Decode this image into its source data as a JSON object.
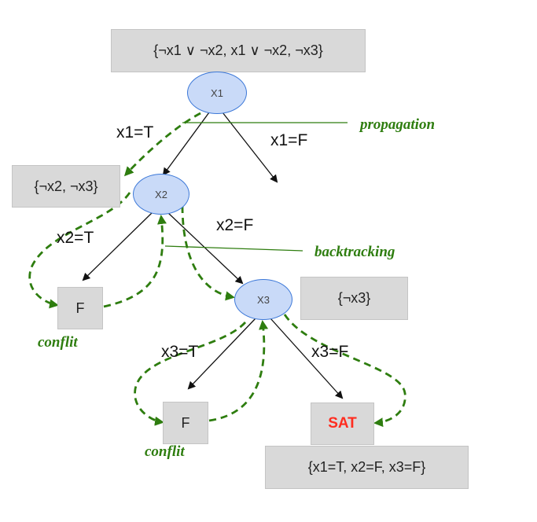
{
  "root_clauses": "{¬x1 ∨ ¬x2, x1 ∨ ¬x2, ¬x3}",
  "nodes": {
    "x1": "X1",
    "x2": "X2",
    "x3": "X3"
  },
  "edges": {
    "x1_true": "x1=T",
    "x1_false": "x1=F",
    "x2_true": "x2=T",
    "x2_false": "x2=F",
    "x3_true": "x3=T",
    "x3_false": "x3=F"
  },
  "clauses_after_x1": "{¬x2, ¬x3}",
  "clauses_after_x2": "{¬x3}",
  "leaf_false_1": "F",
  "leaf_false_2": "F",
  "leaf_sat": "SAT",
  "solution": "{x1=T, x2=F, x3=F}",
  "annotations": {
    "propagation": "propagation",
    "backtracking": "backtracking",
    "conflict_1": "conflit",
    "conflict_2": "conflit"
  },
  "colors": {
    "arrow": "#111111",
    "trace": "#2e7d0f",
    "node_fill": "#c9daf8",
    "node_border": "#3c78d8",
    "sat": "#ff2d20",
    "box": "#d9d9d9"
  }
}
